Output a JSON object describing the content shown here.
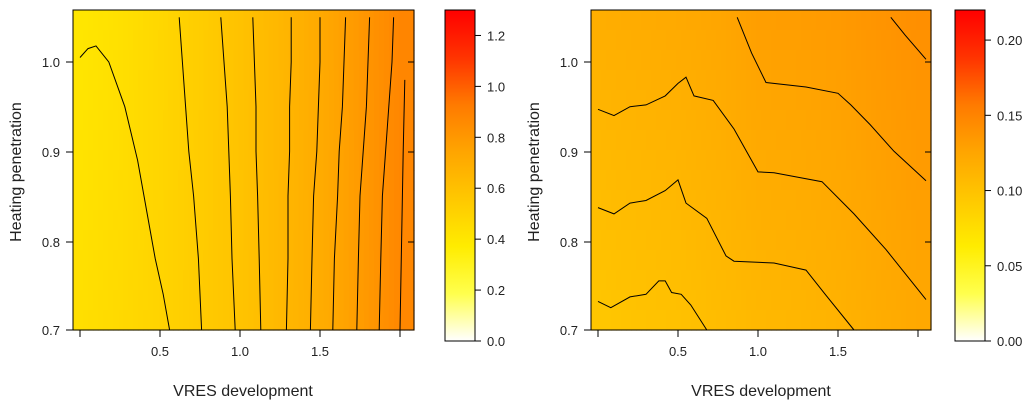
{
  "colors": {
    "scale": [
      "#ffffff",
      "#ffff4d",
      "#ffec00",
      "#ffc800",
      "#ffa500",
      "#ff7a00",
      "#ff3300",
      "#ff0000"
    ],
    "contour_line": "#000000",
    "frame": "#000000"
  },
  "chart_data": [
    {
      "type": "contour",
      "xlabel": "VRES development",
      "ylabel": "Heating penetration",
      "xlim": [
        -0.05,
        2.05
      ],
      "ylim": [
        0.69,
        1.06
      ],
      "x_ticks": [
        0.5,
        1.0,
        1.5
      ],
      "x_tick_labels": [
        "0.5",
        "1.0",
        "1.5"
      ],
      "y_ticks": [
        0.7,
        0.8,
        0.9,
        1.0
      ],
      "y_tick_labels": [
        "0.7",
        "0.8",
        "0.9",
        "1.0"
      ],
      "colorbar": {
        "range": [
          0.0,
          1.3
        ],
        "ticks": [
          0.0,
          0.2,
          0.4,
          0.6,
          0.8,
          1.0,
          1.2
        ],
        "tick_labels": [
          "0.0",
          "0.2",
          "0.4",
          "0.6",
          "0.8",
          "1.0",
          "1.2"
        ]
      },
      "surface": {
        "x": [
          0,
          0.25,
          0.5,
          0.75,
          1.0,
          1.25,
          1.5,
          1.75,
          2.0
        ],
        "values_at_y_0_7": [
          0.44,
          0.47,
          0.5,
          0.54,
          0.58,
          0.64,
          0.7,
          0.78,
          0.87
        ],
        "values_at_y_1_05": [
          0.4,
          0.43,
          0.48,
          0.53,
          0.59,
          0.65,
          0.72,
          0.8,
          0.88
        ]
      },
      "contour_lines": [
        {
          "points": [
            [
              0.0,
              1.005
            ],
            [
              0.05,
              1.015
            ],
            [
              0.1,
              1.018
            ],
            [
              0.18,
              1.0
            ],
            [
              0.28,
              0.95
            ],
            [
              0.36,
              0.89
            ],
            [
              0.42,
              0.83
            ],
            [
              0.47,
              0.78
            ],
            [
              0.52,
              0.74
            ],
            [
              0.56,
              0.7
            ]
          ]
        },
        {
          "points": [
            [
              0.62,
              1.05
            ],
            [
              0.64,
              1.0
            ],
            [
              0.66,
              0.95
            ],
            [
              0.68,
              0.9
            ],
            [
              0.71,
              0.85
            ],
            [
              0.74,
              0.78
            ],
            [
              0.76,
              0.7
            ]
          ]
        },
        {
          "points": [
            [
              0.88,
              1.05
            ],
            [
              0.9,
              1.0
            ],
            [
              0.92,
              0.95
            ],
            [
              0.93,
              0.9
            ],
            [
              0.94,
              0.85
            ],
            [
              0.95,
              0.78
            ],
            [
              0.97,
              0.7
            ]
          ]
        },
        {
          "points": [
            [
              1.08,
              1.05
            ],
            [
              1.09,
              1.0
            ],
            [
              1.1,
              0.95
            ],
            [
              1.1,
              0.9
            ],
            [
              1.11,
              0.85
            ],
            [
              1.12,
              0.78
            ],
            [
              1.13,
              0.7
            ]
          ]
        },
        {
          "points": [
            [
              1.32,
              1.05
            ],
            [
              1.32,
              1.0
            ],
            [
              1.31,
              0.95
            ],
            [
              1.31,
              0.9
            ],
            [
              1.3,
              0.85
            ],
            [
              1.3,
              0.78
            ],
            [
              1.29,
              0.7
            ]
          ]
        },
        {
          "points": [
            [
              1.5,
              1.05
            ],
            [
              1.5,
              1.0
            ],
            [
              1.49,
              0.95
            ],
            [
              1.48,
              0.9
            ],
            [
              1.46,
              0.85
            ],
            [
              1.45,
              0.78
            ],
            [
              1.44,
              0.7
            ]
          ]
        },
        {
          "points": [
            [
              1.66,
              1.05
            ],
            [
              1.65,
              1.0
            ],
            [
              1.64,
              0.95
            ],
            [
              1.62,
              0.9
            ],
            [
              1.61,
              0.85
            ],
            [
              1.59,
              0.78
            ],
            [
              1.58,
              0.7
            ]
          ]
        },
        {
          "points": [
            [
              1.81,
              1.05
            ],
            [
              1.8,
              1.0
            ],
            [
              1.79,
              0.95
            ],
            [
              1.77,
              0.9
            ],
            [
              1.75,
              0.85
            ],
            [
              1.74,
              0.78
            ],
            [
              1.73,
              0.7
            ]
          ]
        },
        {
          "points": [
            [
              1.96,
              1.05
            ],
            [
              1.95,
              1.0
            ],
            [
              1.93,
              0.95
            ],
            [
              1.91,
              0.9
            ],
            [
              1.89,
              0.85
            ],
            [
              1.88,
              0.78
            ],
            [
              1.87,
              0.7
            ]
          ]
        },
        {
          "points": [
            [
              2.03,
              0.98
            ],
            [
              2.02,
              0.9
            ],
            [
              2.01,
              0.8
            ],
            [
              2.0,
              0.7
            ]
          ]
        }
      ]
    },
    {
      "type": "contour",
      "xlabel": "VRES development",
      "ylabel": "Heating penetration",
      "xlim": [
        -0.05,
        2.05
      ],
      "ylim": [
        0.69,
        1.06
      ],
      "x_ticks": [
        0.5,
        1.0,
        1.5
      ],
      "x_tick_labels": [
        "0.5",
        "1.0",
        "1.5"
      ],
      "y_ticks": [
        0.7,
        0.8,
        0.9,
        1.0
      ],
      "y_tick_labels": [
        "0.7",
        "0.8",
        "0.9",
        "1.0"
      ],
      "colorbar": {
        "range": [
          0.0,
          0.22
        ],
        "ticks": [
          0.0,
          0.05,
          0.1,
          0.15,
          0.2
        ],
        "tick_labels": [
          "0.00",
          "0.05",
          "0.10",
          "0.15",
          "0.20"
        ]
      },
      "surface": {
        "x": [
          0,
          0.25,
          0.5,
          0.75,
          1.0,
          1.25,
          1.5,
          1.75,
          2.0
        ],
        "values_at_y_0_7": [
          0.095,
          0.098,
          0.1,
          0.104,
          0.108,
          0.11,
          0.113,
          0.118,
          0.122
        ],
        "values_at_y_1_05": [
          0.118,
          0.12,
          0.122,
          0.125,
          0.131,
          0.132,
          0.134,
          0.138,
          0.142
        ]
      },
      "contour_lines": [
        {
          "points": [
            [
              0.0,
              0.732
            ],
            [
              0.08,
              0.725
            ],
            [
              0.2,
              0.737
            ],
            [
              0.3,
              0.74
            ],
            [
              0.38,
              0.755
            ],
            [
              0.42,
              0.755
            ],
            [
              0.46,
              0.742
            ],
            [
              0.52,
              0.74
            ],
            [
              0.58,
              0.728
            ],
            [
              0.68,
              0.7
            ]
          ]
        },
        {
          "points": [
            [
              0.0,
              0.837
            ],
            [
              0.1,
              0.83
            ],
            [
              0.2,
              0.842
            ],
            [
              0.3,
              0.845
            ],
            [
              0.42,
              0.856
            ],
            [
              0.5,
              0.868
            ],
            [
              0.55,
              0.842
            ],
            [
              0.68,
              0.825
            ],
            [
              0.8,
              0.783
            ],
            [
              0.85,
              0.777
            ],
            [
              1.1,
              0.775
            ],
            [
              1.3,
              0.767
            ],
            [
              1.42,
              0.74
            ],
            [
              1.6,
              0.7
            ]
          ]
        },
        {
          "points": [
            [
              0.0,
              0.947
            ],
            [
              0.1,
              0.94
            ],
            [
              0.2,
              0.95
            ],
            [
              0.3,
              0.952
            ],
            [
              0.42,
              0.962
            ],
            [
              0.5,
              0.976
            ],
            [
              0.55,
              0.983
            ],
            [
              0.6,
              0.962
            ],
            [
              0.72,
              0.957
            ],
            [
              0.85,
              0.925
            ],
            [
              1.0,
              0.877
            ],
            [
              1.1,
              0.876
            ],
            [
              1.4,
              0.866
            ],
            [
              1.6,
              0.83
            ],
            [
              1.8,
              0.79
            ],
            [
              2.05,
              0.734
            ]
          ]
        },
        {
          "points": [
            [
              0.87,
              1.05
            ],
            [
              0.96,
              1.01
            ],
            [
              1.05,
              0.977
            ],
            [
              1.3,
              0.972
            ],
            [
              1.5,
              0.965
            ],
            [
              1.58,
              0.952
            ],
            [
              1.7,
              0.93
            ],
            [
              1.85,
              0.9
            ],
            [
              2.05,
              0.867
            ]
          ]
        },
        {
          "points": [
            [
              1.83,
              1.05
            ],
            [
              1.92,
              1.03
            ],
            [
              2.05,
              1.003
            ]
          ]
        }
      ]
    }
  ]
}
